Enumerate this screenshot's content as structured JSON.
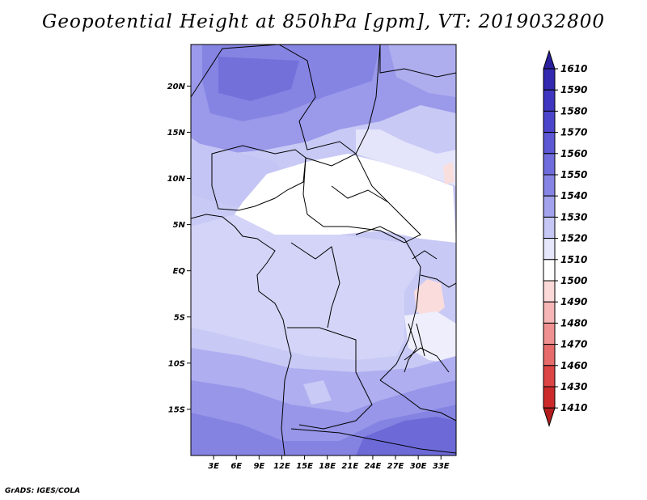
{
  "title": "Geopotential Height at 850hPa [gpm], VT: 2019032800",
  "footer": "GrADS: IGES/COLA",
  "map": {
    "lat_labels": [
      "20N",
      "15N",
      "10N",
      "5N",
      "EQ",
      "5S",
      "10S",
      "15S"
    ],
    "lat_values": [
      20,
      15,
      10,
      5,
      0,
      -5,
      -10,
      -15
    ],
    "lon_labels": [
      "3E",
      "6E",
      "9E",
      "12E",
      "15E",
      "18E",
      "21E",
      "24E",
      "27E",
      "30E",
      "33E"
    ],
    "lon_values": [
      3,
      6,
      9,
      12,
      15,
      18,
      21,
      24,
      27,
      30,
      33
    ]
  },
  "colorbar": {
    "levels": [
      "1610",
      "1590",
      "1580",
      "1570",
      "1560",
      "1550",
      "1540",
      "1530",
      "1520",
      "1510",
      "1500",
      "1490",
      "1480",
      "1470",
      "1460",
      "1430",
      "1410"
    ],
    "colors": [
      "#2a1f9c",
      "#3328b0",
      "#3e36c0",
      "#4b45cc",
      "#5c58d4",
      "#6f6ddd",
      "#8685e5",
      "#a2a2ed",
      "#c6c7f5",
      "#e6e7fb",
      "#ffffff",
      "#fcd9d9",
      "#f6b6b6",
      "#ef9191",
      "#e76b6b",
      "#dd4444",
      "#cc2a2a",
      "#b31d1d"
    ]
  }
}
